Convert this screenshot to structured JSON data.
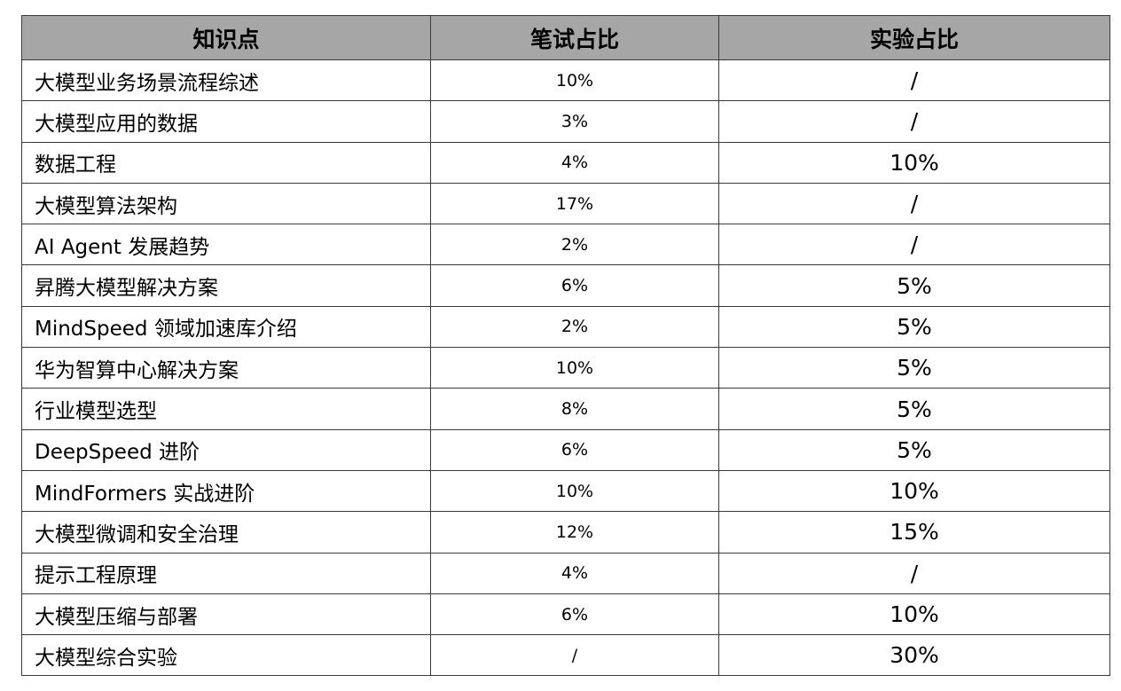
{
  "table": {
    "headers": [
      "知识点",
      "笔试占比",
      "实验占比"
    ],
    "rows": [
      {
        "topic": "大模型业务场景流程综述",
        "written": "10%",
        "lab": "/"
      },
      {
        "topic": "大模型应用的数据",
        "written": "3%",
        "lab": "/"
      },
      {
        "topic": "数据工程",
        "written": "4%",
        "lab": "10%"
      },
      {
        "topic": "大模型算法架构",
        "written": "17%",
        "lab": "/"
      },
      {
        "topic": "AI Agent 发展趋势",
        "written": "2%",
        "lab": "/"
      },
      {
        "topic": "昇腾大模型解决方案",
        "written": "6%",
        "lab": "5%"
      },
      {
        "topic": "MindSpeed 领域加速库介绍",
        "written": "2%",
        "lab": "5%"
      },
      {
        "topic": "华为智算中心解决方案",
        "written": "10%",
        "lab": "5%"
      },
      {
        "topic": "行业模型选型",
        "written": "8%",
        "lab": "5%"
      },
      {
        "topic": "DeepSpeed 进阶",
        "written": "6%",
        "lab": "5%"
      },
      {
        "topic": "MindFormers 实战进阶",
        "written": "10%",
        "lab": "10%"
      },
      {
        "topic": "大模型微调和安全治理",
        "written": "12%",
        "lab": "15%"
      },
      {
        "topic": "提示工程原理",
        "written": "4%",
        "lab": "/"
      },
      {
        "topic": "大模型压缩与部署",
        "written": "6%",
        "lab": "10%"
      },
      {
        "topic": "大模型综合实验",
        "written": "/",
        "lab": "30%"
      }
    ]
  },
  "colors": {
    "header_background": "#a6a6a6",
    "border": "#3a3a3a",
    "text": "#000000"
  }
}
